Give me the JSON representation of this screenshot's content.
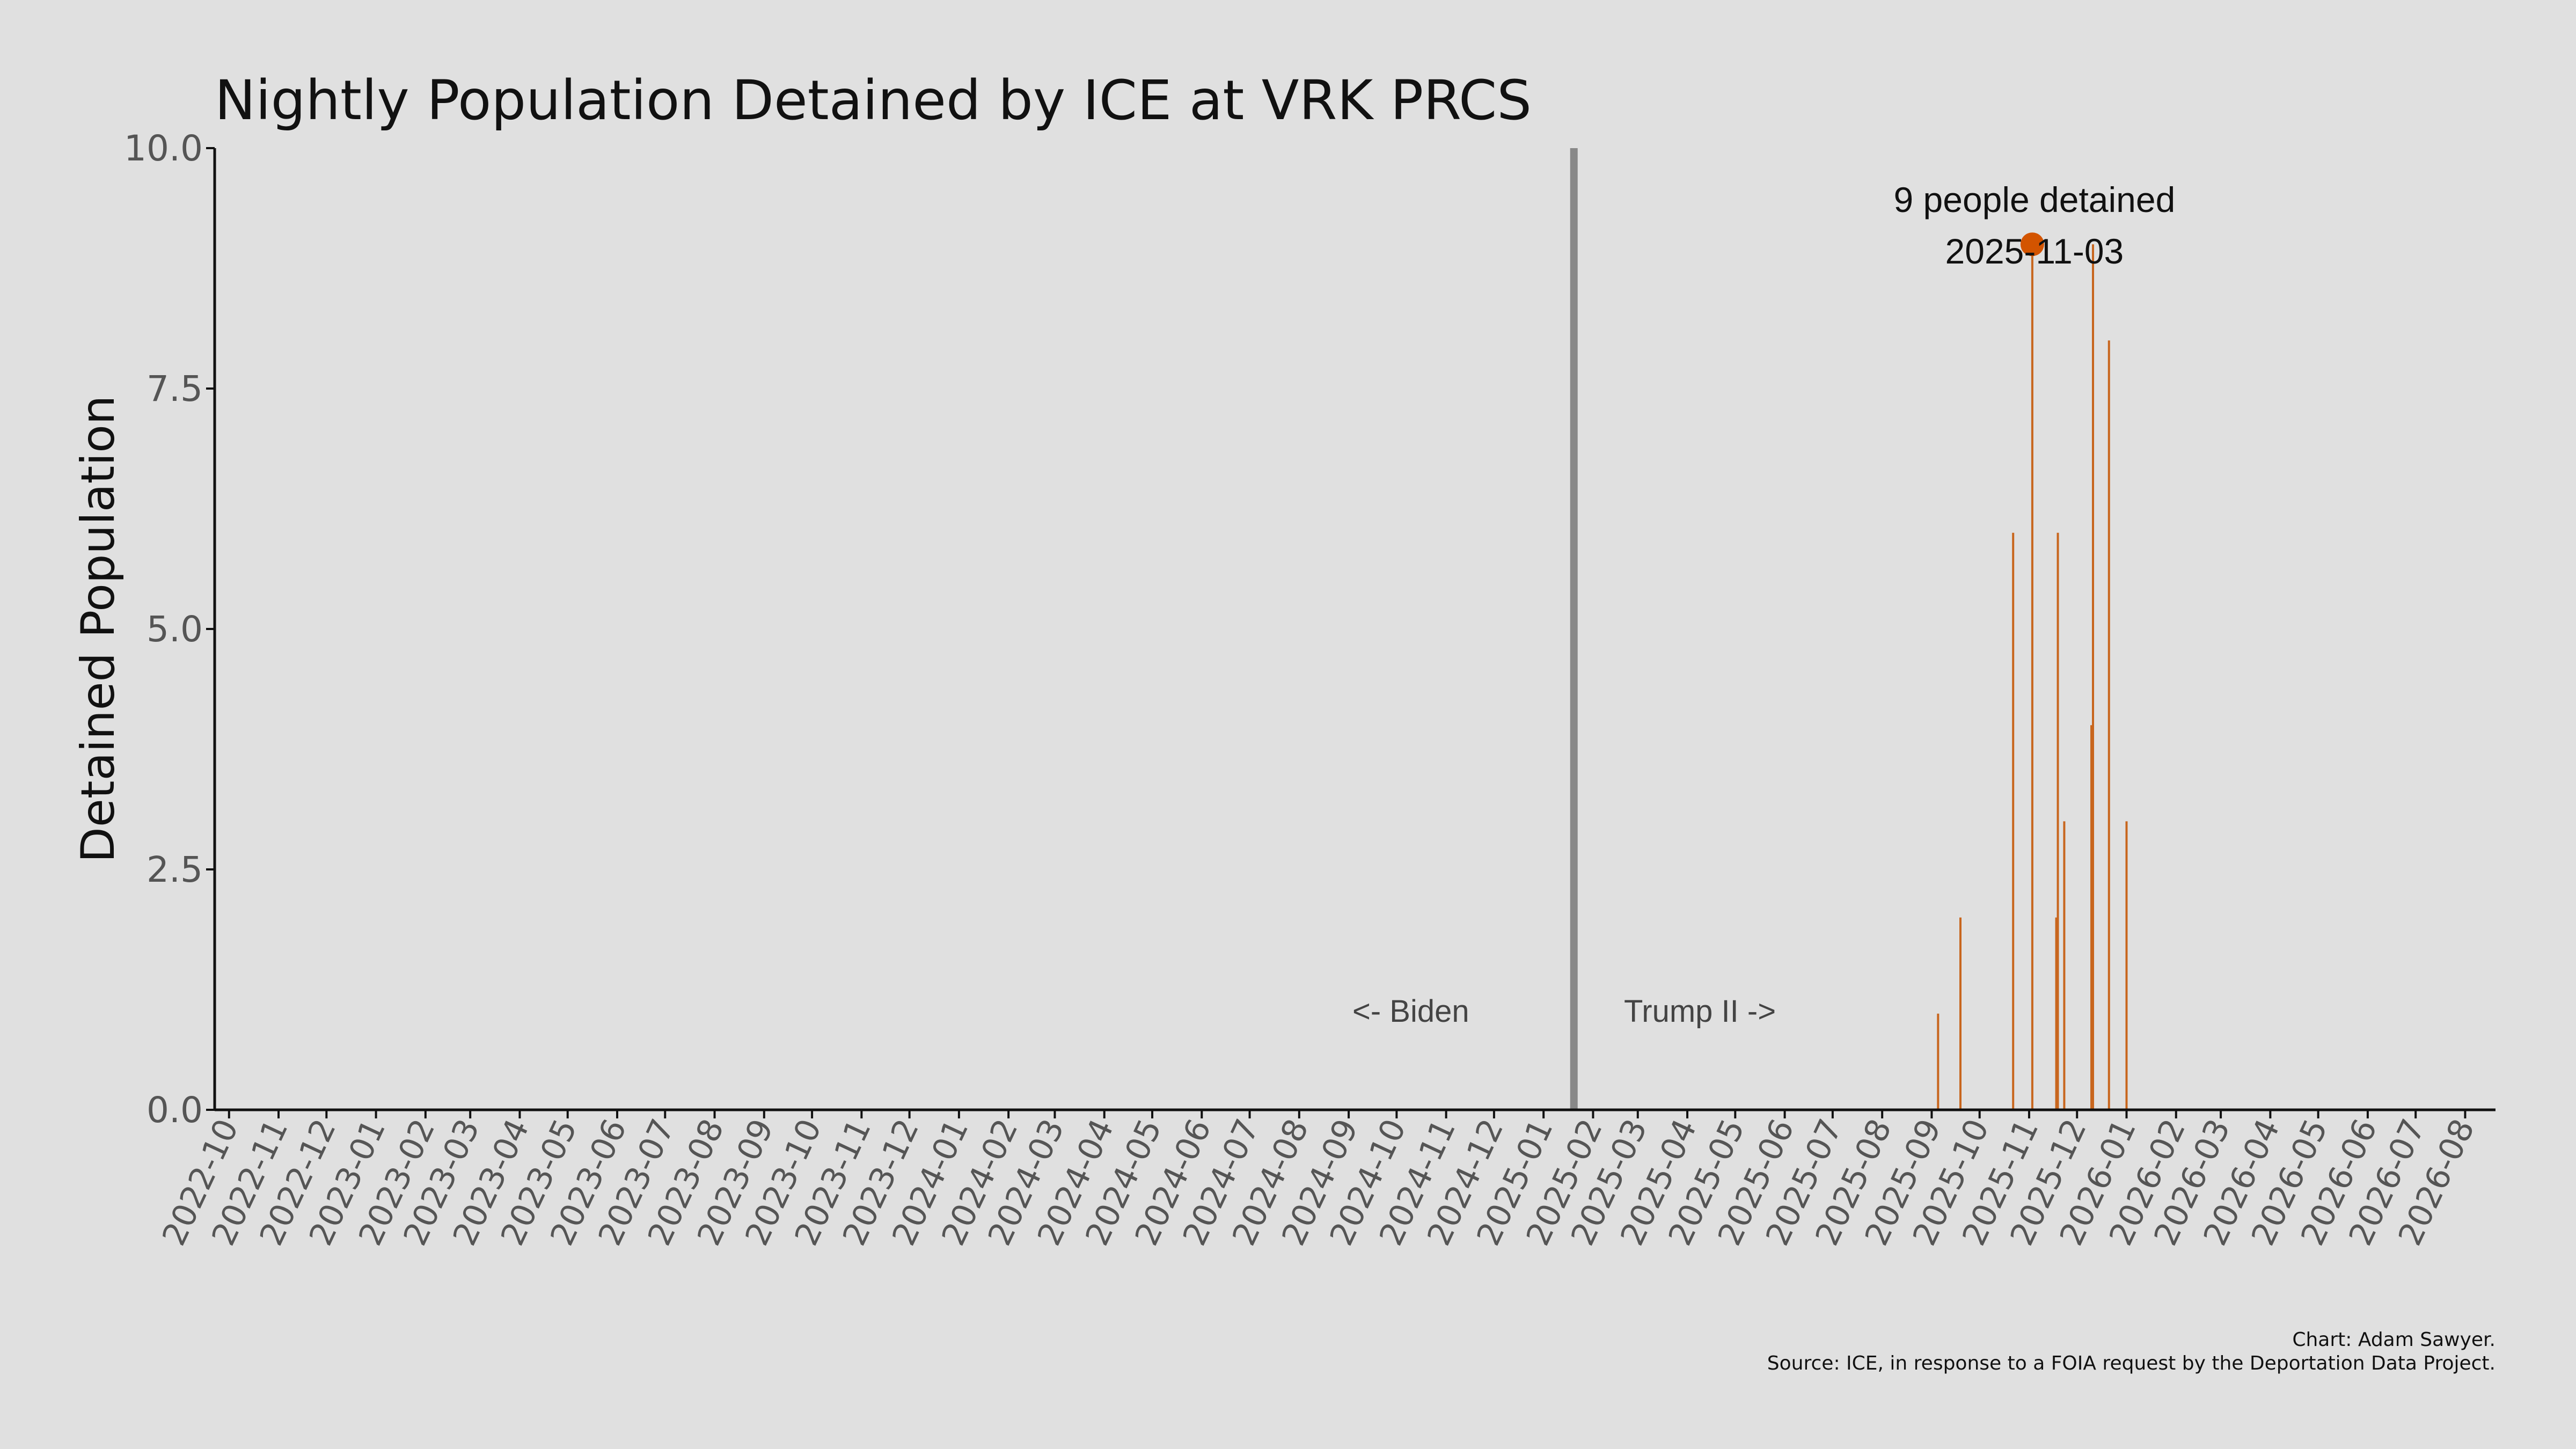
{
  "chart_data": {
    "type": "bar",
    "title": "Nightly Population Detained by ICE at VRK PRCS",
    "xlabel": "",
    "ylabel": "Detained Population",
    "ylim": [
      0,
      10
    ],
    "yticks": [
      "0.0",
      "2.5",
      "5.0",
      "7.5",
      "10.0"
    ],
    "xlim": [
      "2022-09-22",
      "2026-08-20"
    ],
    "xticks": [
      "2022-10",
      "2022-11",
      "2022-12",
      "2023-01",
      "2023-02",
      "2023-03",
      "2023-04",
      "2023-05",
      "2023-06",
      "2023-07",
      "2023-08",
      "2023-09",
      "2023-10",
      "2023-11",
      "2023-12",
      "2024-01",
      "2024-02",
      "2024-03",
      "2024-04",
      "2024-05",
      "2024-06",
      "2024-07",
      "2024-08",
      "2024-09",
      "2024-10",
      "2024-11",
      "2024-12",
      "2025-01",
      "2025-02",
      "2025-03",
      "2025-04",
      "2025-05",
      "2025-06",
      "2025-07",
      "2025-08",
      "2025-09",
      "2025-10",
      "2025-11",
      "2025-12",
      "2026-01",
      "2026-02",
      "2026-03",
      "2026-04",
      "2026-05",
      "2026-06",
      "2026-07",
      "2026-08"
    ],
    "bar_color": "#c8661e",
    "points": [
      {
        "date": "2025-09-05",
        "value": 1
      },
      {
        "date": "2025-09-19",
        "value": 2
      },
      {
        "date": "2025-10-22",
        "value": 6
      },
      {
        "date": "2025-11-03",
        "value": 9
      },
      {
        "date": "2025-11-18",
        "value": 2
      },
      {
        "date": "2025-11-19",
        "value": 6
      },
      {
        "date": "2025-11-23",
        "value": 3
      },
      {
        "date": "2025-12-10",
        "value": 4
      },
      {
        "date": "2025-12-11",
        "value": 9
      },
      {
        "date": "2025-12-21",
        "value": 8
      },
      {
        "date": "2026-01-01",
        "value": 3
      }
    ],
    "divider": {
      "date": "2025-01-20",
      "color": "#888888"
    },
    "era_labels": {
      "left": "<- Biden",
      "right": "Trump II ->"
    },
    "highlight": {
      "date": "2025-11-03",
      "value": 9,
      "color": "#d35400",
      "label_line1": "9 people detained",
      "label_line2": "2025-11-03"
    },
    "grid": false,
    "legend": "none"
  },
  "caption": {
    "line1": "Chart: Adam Sawyer.",
    "line2": "Source: ICE, in response to a FOIA request by the Deportation Data Project."
  }
}
